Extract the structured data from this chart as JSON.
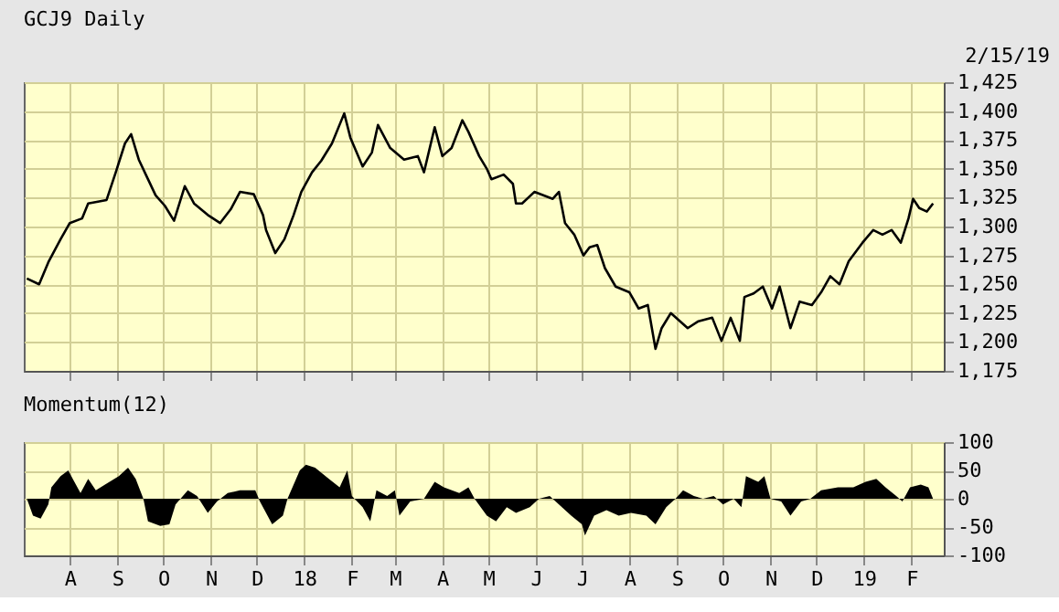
{
  "chart_data": [
    {
      "type": "line",
      "title": "GCJ9 Daily",
      "annotations": [
        "2/15/19"
      ],
      "grid": true,
      "tick_labels": "y",
      "ylim": [
        1175,
        1425
      ],
      "yticks": [
        {
          "value": 1175,
          "label": "1,175"
        },
        {
          "value": 1200,
          "label": "1,200"
        },
        {
          "value": 1225,
          "label": "1,225"
        },
        {
          "value": 1250,
          "label": "1,250"
        },
        {
          "value": 1275,
          "label": "1,275"
        },
        {
          "value": 1300,
          "label": "1,300"
        },
        {
          "value": 1325,
          "label": "1,325"
        },
        {
          "value": 1350,
          "label": "1,350"
        },
        {
          "value": 1375,
          "label": "1,375"
        },
        {
          "value": 1400,
          "label": "1,400"
        },
        {
          "value": 1425,
          "label": "1,425"
        }
      ],
      "xlim": [
        "2017-07-02",
        "2019-02-22"
      ],
      "xticks": [
        {
          "value": "2017-08-01",
          "label": null
        },
        {
          "value": "2017-09-01",
          "label": null
        },
        {
          "value": "2017-10-01",
          "label": null
        },
        {
          "value": "2017-11-01",
          "label": null
        },
        {
          "value": "2017-12-01",
          "label": null
        },
        {
          "value": "2018-01-01",
          "label": null
        },
        {
          "value": "2018-02-01",
          "label": null
        },
        {
          "value": "2018-03-01",
          "label": null
        },
        {
          "value": "2018-04-01",
          "label": null
        },
        {
          "value": "2018-05-01",
          "label": null
        },
        {
          "value": "2018-06-01",
          "label": null
        },
        {
          "value": "2018-07-01",
          "label": null
        },
        {
          "value": "2018-08-01",
          "label": null
        },
        {
          "value": "2018-09-01",
          "label": null
        },
        {
          "value": "2018-10-01",
          "label": null
        },
        {
          "value": "2018-11-01",
          "label": null
        },
        {
          "value": "2018-12-01",
          "label": null
        },
        {
          "value": "2019-01-01",
          "label": null
        },
        {
          "value": "2019-02-01",
          "label": null
        }
      ],
      "series": [
        {
          "color": "#000000",
          "x": [
            "2017-07-04",
            "2017-07-12",
            "2017-07-18",
            "2017-07-26",
            "2017-08-01",
            "2017-08-09",
            "2017-08-13",
            "2017-08-25",
            "2017-08-31",
            "2017-09-06",
            "2017-09-10",
            "2017-09-15",
            "2017-09-21",
            "2017-09-26",
            "2017-10-02",
            "2017-10-08",
            "2017-10-15",
            "2017-10-21",
            "2017-10-30",
            "2017-11-07",
            "2017-11-14",
            "2017-11-20",
            "2017-11-29",
            "2017-12-05",
            "2017-12-07",
            "2017-12-13",
            "2017-12-19",
            "2017-12-25",
            "2017-12-30",
            "2018-01-06",
            "2018-01-12",
            "2018-01-19",
            "2018-01-27",
            "2018-01-31",
            "2018-02-08",
            "2018-02-14",
            "2018-02-18",
            "2018-02-26",
            "2018-03-07",
            "2018-03-16",
            "2018-03-20",
            "2018-03-27",
            "2018-04-01",
            "2018-04-07",
            "2018-04-14",
            "2018-04-18",
            "2018-04-25",
            "2018-04-30",
            "2018-05-03",
            "2018-05-11",
            "2018-05-17",
            "2018-05-19",
            "2018-05-23",
            "2018-05-31",
            "2018-06-12",
            "2018-06-16",
            "2018-06-20",
            "2018-06-26",
            "2018-07-02",
            "2018-07-06",
            "2018-07-11",
            "2018-07-16",
            "2018-07-23",
            "2018-08-01",
            "2018-08-07",
            "2018-08-13",
            "2018-08-18",
            "2018-08-22",
            "2018-08-28",
            "2018-09-08",
            "2018-09-15",
            "2018-09-24",
            "2018-09-30",
            "2018-10-06",
            "2018-10-12",
            "2018-10-15",
            "2018-10-21",
            "2018-10-27",
            "2018-11-02",
            "2018-11-07",
            "2018-11-14",
            "2018-11-20",
            "2018-11-28",
            "2018-12-04",
            "2018-12-10",
            "2018-12-16",
            "2018-12-22",
            "2018-12-31",
            "2019-01-07",
            "2019-01-13",
            "2019-01-19",
            "2019-01-25",
            "2019-01-30",
            "2019-02-02",
            "2019-02-06",
            "2019-02-11",
            "2019-02-15"
          ],
          "values": [
            1255,
            1250,
            1269,
            1289,
            1303,
            1307,
            1320,
            1323,
            1347,
            1372,
            1380,
            1358,
            1341,
            1327,
            1318,
            1305,
            1335,
            1320,
            1310,
            1303,
            1315,
            1330,
            1328,
            1310,
            1297,
            1277,
            1289,
            1310,
            1330,
            1347,
            1357,
            1372,
            1398,
            1377,
            1352,
            1364,
            1388,
            1368,
            1358,
            1361,
            1347,
            1386,
            1361,
            1368,
            1392,
            1382,
            1361,
            1350,
            1341,
            1345,
            1337,
            1320,
            1320,
            1330,
            1324,
            1330,
            1303,
            1293,
            1275,
            1282,
            1284,
            1264,
            1248,
            1243,
            1229,
            1232,
            1194,
            1212,
            1225,
            1212,
            1218,
            1221,
            1201,
            1221,
            1201,
            1239,
            1242,
            1248,
            1229,
            1248,
            1212,
            1235,
            1232,
            1243,
            1257,
            1250,
            1270,
            1286,
            1297,
            1293,
            1297,
            1286,
            1307,
            1324,
            1316,
            1313,
            1320
          ]
        }
      ]
    },
    {
      "type": "area",
      "title": "Momentum(12)",
      "grid": true,
      "ylim": [
        -100,
        100
      ],
      "yticks": [
        -100,
        -50,
        0,
        50,
        100
      ],
      "xlim": [
        "2017-07-02",
        "2019-02-22"
      ],
      "xticks": [
        {
          "value": "2017-08-01",
          "label": "A"
        },
        {
          "value": "2017-09-01",
          "label": "S"
        },
        {
          "value": "2017-10-01",
          "label": "O"
        },
        {
          "value": "2017-11-01",
          "label": "N"
        },
        {
          "value": "2017-12-01",
          "label": "D"
        },
        {
          "value": "2018-01-01",
          "label": "18"
        },
        {
          "value": "2018-02-01",
          "label": "F"
        },
        {
          "value": "2018-03-01",
          "label": "M"
        },
        {
          "value": "2018-04-01",
          "label": "A"
        },
        {
          "value": "2018-05-01",
          "label": "M"
        },
        {
          "value": "2018-06-01",
          "label": "J"
        },
        {
          "value": "2018-07-01",
          "label": "J"
        },
        {
          "value": "2018-08-01",
          "label": "A"
        },
        {
          "value": "2018-09-01",
          "label": "S"
        },
        {
          "value": "2018-10-01",
          "label": "O"
        },
        {
          "value": "2018-11-01",
          "label": "N"
        },
        {
          "value": "2018-12-01",
          "label": "D"
        },
        {
          "value": "2019-01-01",
          "label": "19"
        },
        {
          "value": "2019-02-01",
          "label": "F"
        }
      ],
      "series": [
        {
          "color": "#000000",
          "x": [
            "2017-07-04",
            "2017-07-08",
            "2017-07-13",
            "2017-07-18",
            "2017-07-20",
            "2017-07-26",
            "2017-07-31",
            "2017-08-04",
            "2017-08-08",
            "2017-08-13",
            "2017-08-18",
            "2017-08-24",
            "2017-09-02",
            "2017-09-08",
            "2017-09-13",
            "2017-09-18",
            "2017-09-21",
            "2017-09-29",
            "2017-10-05",
            "2017-10-09",
            "2017-10-17",
            "2017-10-23",
            "2017-10-30",
            "2017-11-05",
            "2017-11-12",
            "2017-11-20",
            "2017-11-30",
            "2017-12-03",
            "2017-12-11",
            "2017-12-18",
            "2017-12-21",
            "2017-12-29",
            "2018-01-02",
            "2018-01-08",
            "2018-01-17",
            "2018-01-24",
            "2018-01-29",
            "2018-02-01",
            "2018-02-08",
            "2018-02-13",
            "2018-02-17",
            "2018-02-24",
            "2018-03-01",
            "2018-03-04",
            "2018-03-11",
            "2018-03-20",
            "2018-03-27",
            "2018-04-02",
            "2018-04-12",
            "2018-04-18",
            "2018-04-22",
            "2018-04-30",
            "2018-05-06",
            "2018-05-13",
            "2018-05-19",
            "2018-05-28",
            "2018-06-03",
            "2018-06-10",
            "2018-06-16",
            "2018-06-24",
            "2018-07-01",
            "2018-07-03",
            "2018-07-09",
            "2018-07-17",
            "2018-07-25",
            "2018-08-02",
            "2018-08-12",
            "2018-08-18",
            "2018-08-25",
            "2018-08-31",
            "2018-09-05",
            "2018-09-12",
            "2018-09-18",
            "2018-09-25",
            "2018-10-01",
            "2018-10-08",
            "2018-10-13",
            "2018-10-16",
            "2018-10-24",
            "2018-10-28",
            "2018-11-01",
            "2018-11-08",
            "2018-11-14",
            "2018-11-21",
            "2018-11-27",
            "2018-12-04",
            "2018-12-15",
            "2018-12-25",
            "2019-01-02",
            "2019-01-09",
            "2019-01-15",
            "2019-01-22",
            "2019-01-26",
            "2019-01-31",
            "2019-02-07",
            "2019-02-12",
            "2019-02-15"
          ],
          "values": [
            0,
            -30,
            -35,
            -10,
            20,
            40,
            50,
            30,
            10,
            35,
            15,
            25,
            40,
            55,
            35,
            0,
            -40,
            -48,
            -45,
            -10,
            15,
            5,
            -25,
            -5,
            10,
            15,
            15,
            -5,
            -45,
            -30,
            0,
            50,
            60,
            55,
            35,
            20,
            50,
            5,
            -15,
            -40,
            15,
            5,
            15,
            -30,
            -5,
            0,
            30,
            20,
            10,
            20,
            0,
            -30,
            -40,
            -15,
            -25,
            -15,
            0,
            5,
            -10,
            -30,
            -45,
            -65,
            -30,
            -20,
            -30,
            -25,
            -30,
            -45,
            -15,
            0,
            15,
            5,
            0,
            5,
            -10,
            0,
            -15,
            40,
            30,
            40,
            0,
            -5,
            -30,
            -5,
            0,
            15,
            20,
            20,
            30,
            35,
            20,
            5,
            -5,
            20,
            25,
            20,
            0
          ]
        }
      ]
    }
  ]
}
